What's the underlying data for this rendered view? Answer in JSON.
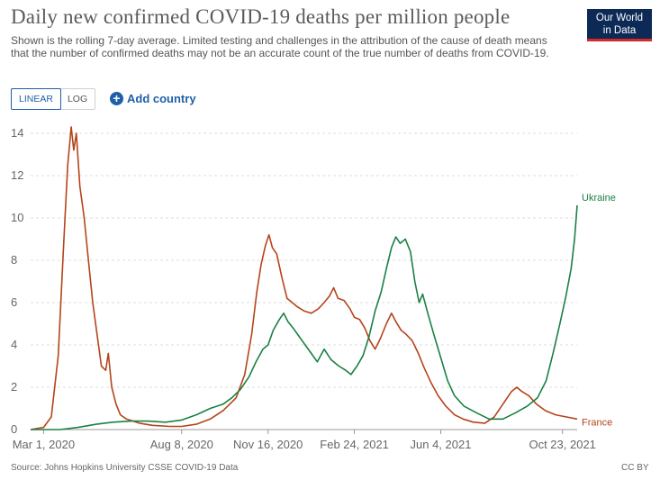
{
  "title": "Daily new confirmed COVID-19 deaths per million people",
  "subtitle": "Shown is the rolling 7-day average. Limited testing and challenges in the attribution of the cause of death means that the number of confirmed deaths may not be an accurate count of the true number of deaths from COVID-19.",
  "logo": {
    "line1": "Our World",
    "line2": "in Data"
  },
  "controls": {
    "linear_label": "LINEAR",
    "log_label": "LOG",
    "add_country_label": "Add country"
  },
  "footer": {
    "source": "Source: Johns Hopkins University CSSE COVID-19 Data",
    "license": "CC BY"
  },
  "colors": {
    "France": "#b5441b",
    "Ukraine": "#1a8045",
    "grid": "#dddddd",
    "axis": "#666666"
  },
  "chart_data": {
    "type": "line",
    "xlabel": "",
    "ylabel": "",
    "ylim": [
      0,
      14
    ],
    "yticks": [
      0,
      2,
      4,
      6,
      8,
      10,
      12,
      14
    ],
    "y_tick_labels": [
      "0",
      "2",
      "4",
      "6",
      "8",
      "10",
      "12",
      "14"
    ],
    "grid": true,
    "x_ticks": [
      {
        "date": "2020-03-01",
        "label": "Mar 1, 2020"
      },
      {
        "date": "2020-08-08",
        "label": "Aug 8, 2020"
      },
      {
        "date": "2020-11-16",
        "label": "Nov 16, 2020"
      },
      {
        "date": "2021-02-24",
        "label": "Feb 24, 2021"
      },
      {
        "date": "2021-06-04",
        "label": "Jun 4, 2021"
      },
      {
        "date": "2021-10-23",
        "label": "Oct 23, 2021"
      }
    ],
    "x_range": [
      "2020-02-15",
      "2021-11-09"
    ],
    "series": [
      {
        "name": "France",
        "color": "#b5441b",
        "points": [
          [
            "2020-02-15",
            0
          ],
          [
            "2020-03-01",
            0.1
          ],
          [
            "2020-03-10",
            0.6
          ],
          [
            "2020-03-18",
            3.5
          ],
          [
            "2020-03-24",
            8.5
          ],
          [
            "2020-03-29",
            12.5
          ],
          [
            "2020-04-02",
            14.3
          ],
          [
            "2020-04-05",
            13.2
          ],
          [
            "2020-04-08",
            14.0
          ],
          [
            "2020-04-12",
            11.5
          ],
          [
            "2020-04-17",
            10.0
          ],
          [
            "2020-04-22",
            8.0
          ],
          [
            "2020-04-27",
            6.0
          ],
          [
            "2020-05-02",
            4.5
          ],
          [
            "2020-05-07",
            3.0
          ],
          [
            "2020-05-12",
            2.8
          ],
          [
            "2020-05-15",
            3.6
          ],
          [
            "2020-05-19",
            2.0
          ],
          [
            "2020-05-24",
            1.2
          ],
          [
            "2020-05-29",
            0.7
          ],
          [
            "2020-06-05",
            0.5
          ],
          [
            "2020-06-20",
            0.3
          ],
          [
            "2020-07-05",
            0.2
          ],
          [
            "2020-07-25",
            0.15
          ],
          [
            "2020-08-08",
            0.15
          ],
          [
            "2020-08-25",
            0.25
          ],
          [
            "2020-09-10",
            0.5
          ],
          [
            "2020-09-25",
            0.9
          ],
          [
            "2020-10-10",
            1.5
          ],
          [
            "2020-10-20",
            2.6
          ],
          [
            "2020-10-28",
            4.5
          ],
          [
            "2020-11-03",
            6.5
          ],
          [
            "2020-11-08",
            7.8
          ],
          [
            "2020-11-13",
            8.7
          ],
          [
            "2020-11-17",
            9.2
          ],
          [
            "2020-11-21",
            8.6
          ],
          [
            "2020-11-26",
            8.3
          ],
          [
            "2020-12-02",
            7.2
          ],
          [
            "2020-12-08",
            6.2
          ],
          [
            "2020-12-14",
            6.0
          ],
          [
            "2020-12-20",
            5.8
          ],
          [
            "2020-12-28",
            5.6
          ],
          [
            "2021-01-05",
            5.5
          ],
          [
            "2021-01-13",
            5.7
          ],
          [
            "2021-01-20",
            6.0
          ],
          [
            "2021-01-26",
            6.3
          ],
          [
            "2021-01-31",
            6.7
          ],
          [
            "2021-02-05",
            6.2
          ],
          [
            "2021-02-12",
            6.1
          ],
          [
            "2021-02-19",
            5.7
          ],
          [
            "2021-02-24",
            5.3
          ],
          [
            "2021-03-02",
            5.2
          ],
          [
            "2021-03-08",
            4.8
          ],
          [
            "2021-03-14",
            4.2
          ],
          [
            "2021-03-20",
            3.8
          ],
          [
            "2021-03-26",
            4.3
          ],
          [
            "2021-04-02",
            5.0
          ],
          [
            "2021-04-08",
            5.5
          ],
          [
            "2021-04-13",
            5.1
          ],
          [
            "2021-04-19",
            4.7
          ],
          [
            "2021-04-25",
            4.5
          ],
          [
            "2021-05-02",
            4.2
          ],
          [
            "2021-05-09",
            3.6
          ],
          [
            "2021-05-16",
            2.9
          ],
          [
            "2021-05-24",
            2.2
          ],
          [
            "2021-06-01",
            1.6
          ],
          [
            "2021-06-10",
            1.1
          ],
          [
            "2021-06-20",
            0.7
          ],
          [
            "2021-06-30",
            0.5
          ],
          [
            "2021-07-12",
            0.35
          ],
          [
            "2021-07-25",
            0.3
          ],
          [
            "2021-08-05",
            0.6
          ],
          [
            "2021-08-15",
            1.2
          ],
          [
            "2021-08-25",
            1.8
          ],
          [
            "2021-08-31",
            2.0
          ],
          [
            "2021-09-06",
            1.8
          ],
          [
            "2021-09-14",
            1.6
          ],
          [
            "2021-09-23",
            1.2
          ],
          [
            "2021-10-03",
            0.9
          ],
          [
            "2021-10-15",
            0.7
          ],
          [
            "2021-10-27",
            0.6
          ],
          [
            "2021-11-09",
            0.5
          ]
        ]
      },
      {
        "name": "Ukraine",
        "color": "#1a8045",
        "points": [
          [
            "2020-02-15",
            0
          ],
          [
            "2020-03-20",
            0
          ],
          [
            "2020-04-10",
            0.1
          ],
          [
            "2020-05-01",
            0.25
          ],
          [
            "2020-05-20",
            0.35
          ],
          [
            "2020-06-10",
            0.4
          ],
          [
            "2020-06-30",
            0.4
          ],
          [
            "2020-07-20",
            0.35
          ],
          [
            "2020-08-08",
            0.45
          ],
          [
            "2020-08-25",
            0.7
          ],
          [
            "2020-09-10",
            1.0
          ],
          [
            "2020-09-25",
            1.2
          ],
          [
            "2020-10-05",
            1.5
          ],
          [
            "2020-10-15",
            1.9
          ],
          [
            "2020-10-25",
            2.5
          ],
          [
            "2020-11-02",
            3.2
          ],
          [
            "2020-11-10",
            3.8
          ],
          [
            "2020-11-16",
            4.0
          ],
          [
            "2020-11-22",
            4.7
          ],
          [
            "2020-11-29",
            5.2
          ],
          [
            "2020-12-04",
            5.5
          ],
          [
            "2020-12-09",
            5.1
          ],
          [
            "2020-12-15",
            4.8
          ],
          [
            "2020-12-22",
            4.4
          ],
          [
            "2020-12-29",
            4.0
          ],
          [
            "2021-01-05",
            3.6
          ],
          [
            "2021-01-12",
            3.2
          ],
          [
            "2021-01-20",
            3.8
          ],
          [
            "2021-01-28",
            3.3
          ],
          [
            "2021-02-06",
            3.0
          ],
          [
            "2021-02-14",
            2.8
          ],
          [
            "2021-02-20",
            2.6
          ],
          [
            "2021-02-27",
            3.0
          ],
          [
            "2021-03-06",
            3.5
          ],
          [
            "2021-03-13",
            4.4
          ],
          [
            "2021-03-20",
            5.6
          ],
          [
            "2021-03-27",
            6.5
          ],
          [
            "2021-04-02",
            7.6
          ],
          [
            "2021-04-08",
            8.6
          ],
          [
            "2021-04-13",
            9.1
          ],
          [
            "2021-04-18",
            8.8
          ],
          [
            "2021-04-24",
            9.0
          ],
          [
            "2021-04-30",
            8.4
          ],
          [
            "2021-05-05",
            7.0
          ],
          [
            "2021-05-10",
            6.0
          ],
          [
            "2021-05-14",
            6.4
          ],
          [
            "2021-05-20",
            5.5
          ],
          [
            "2021-05-27",
            4.5
          ],
          [
            "2021-06-04",
            3.4
          ],
          [
            "2021-06-12",
            2.3
          ],
          [
            "2021-06-20",
            1.6
          ],
          [
            "2021-07-01",
            1.1
          ],
          [
            "2021-07-15",
            0.8
          ],
          [
            "2021-07-30",
            0.5
          ],
          [
            "2021-08-15",
            0.5
          ],
          [
            "2021-08-30",
            0.8
          ],
          [
            "2021-09-12",
            1.1
          ],
          [
            "2021-09-24",
            1.5
          ],
          [
            "2021-10-04",
            2.3
          ],
          [
            "2021-10-12",
            3.6
          ],
          [
            "2021-10-20",
            5.0
          ],
          [
            "2021-10-27",
            6.3
          ],
          [
            "2021-11-02",
            7.6
          ],
          [
            "2021-11-06",
            9.0
          ],
          [
            "2021-11-09",
            10.6
          ]
        ]
      }
    ]
  }
}
